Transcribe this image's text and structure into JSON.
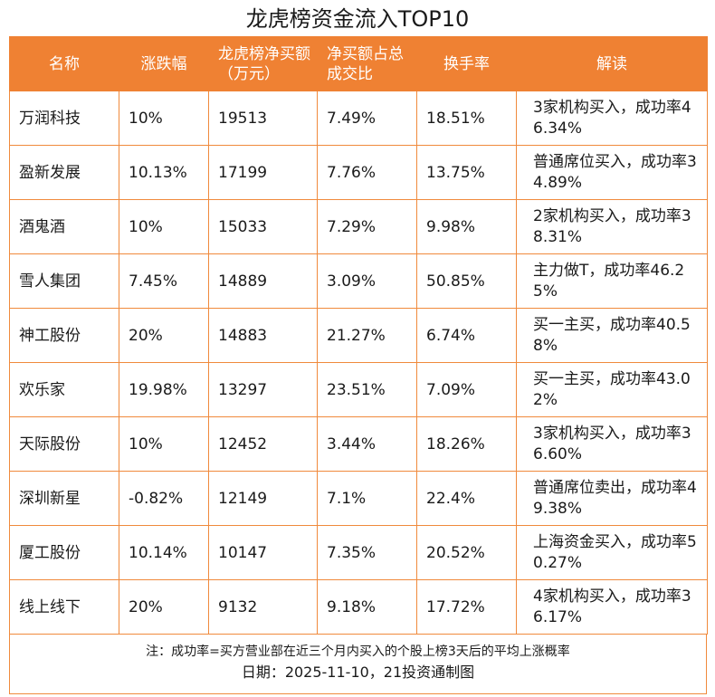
{
  "title": "龙虎榜资金流入TOP10",
  "headers": [
    "名称",
    "涨跌幅",
    "龙虎榜净买额（万元）",
    "净买额占总成交比",
    "换手率",
    "解读"
  ],
  "rows": [
    {
      "name": "万润科技",
      "change": "10%",
      "net_buy": "19513",
      "ratio": "7.49%",
      "turnover": "18.51%",
      "note": "3家机构买入，成功率46.34%"
    },
    {
      "name": "盈新发展",
      "change": "10.13%",
      "net_buy": "17199",
      "ratio": "7.76%",
      "turnover": "13.75%",
      "note": "普通席位买入，成功率34.89%"
    },
    {
      "name": "酒鬼酒",
      "change": "10%",
      "net_buy": "15033",
      "ratio": "7.29%",
      "turnover": "9.98%",
      "note": "2家机构买入，成功率38.31%"
    },
    {
      "name": "雪人集团",
      "change": "7.45%",
      "net_buy": "14889",
      "ratio": "3.09%",
      "turnover": "50.85%",
      "note": "主力做T，成功率46.25%"
    },
    {
      "name": "神工股份",
      "change": "20%",
      "net_buy": "14883",
      "ratio": "21.27%",
      "turnover": "6.74%",
      "note": "买一主买，成功率40.58%"
    },
    {
      "name": "欢乐家",
      "change": "19.98%",
      "net_buy": "13297",
      "ratio": "23.51%",
      "turnover": "7.09%",
      "note": "买一主买，成功率43.02%"
    },
    {
      "name": "天际股份",
      "change": "10%",
      "net_buy": "12452",
      "ratio": "3.44%",
      "turnover": "18.26%",
      "note": "3家机构买入，成功率36.60%"
    },
    {
      "name": "深圳新星",
      "change": "-0.82%",
      "net_buy": "12149",
      "ratio": "7.1%",
      "turnover": "22.4%",
      "note": "普通席位卖出，成功率49.38%"
    },
    {
      "name": "厦工股份",
      "change": "10.14%",
      "net_buy": "10147",
      "ratio": "7.35%",
      "turnover": "20.52%",
      "note": "上海资金买入，成功率50.27%"
    },
    {
      "name": "线上线下",
      "change": "20%",
      "net_buy": "9132",
      "ratio": "9.18%",
      "turnover": "17.72%",
      "note": "4家机构买入，成功率36.17%"
    }
  ],
  "footnote": "注：成功率=买方营业部在近三个月内买入的个股上榜3天后的平均上涨概率",
  "date_line": "日期：2025-11-10，21投资通制图",
  "colors": {
    "accent": "#ef8133",
    "border": "#f08a3c"
  }
}
